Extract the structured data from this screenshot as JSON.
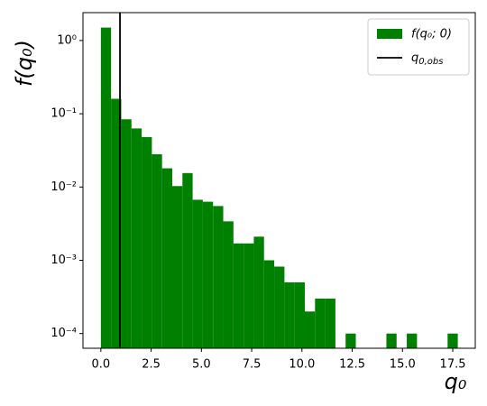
{
  "chart_data": {
    "type": "histogram",
    "bins": [
      0,
      0.507,
      1.014,
      1.521,
      2.029,
      2.536,
      3.043,
      3.55,
      4.057,
      4.564,
      5.071,
      5.579,
      6.086,
      6.593,
      7.1,
      7.607,
      8.114,
      8.621,
      9.129,
      9.636,
      10.143,
      10.65,
      11.157,
      11.664,
      12.171,
      12.679,
      13.186,
      13.693,
      14.2,
      14.707,
      15.214,
      15.721,
      16.229,
      16.736,
      17.243,
      17.75
    ],
    "series": [
      {
        "name": "f(q₀; 0)",
        "color": "#008000",
        "values": [
          1.5,
          0.16,
          0.084,
          0.063,
          0.048,
          0.028,
          0.018,
          0.0103,
          0.0155,
          0.0067,
          0.0063,
          0.0055,
          0.0034,
          0.0017,
          0.0017,
          0.0021,
          0.001,
          0.00082,
          0.0005,
          0.0005,
          0.0002,
          0.0003,
          0.0003,
          0,
          0.0001,
          0,
          0,
          0,
          0.0001,
          0,
          0.0001,
          0,
          0,
          0,
          0.0001
        ]
      }
    ],
    "observed": {
      "label_main": "q",
      "label_sub": "0,obs",
      "value": 0.95,
      "color": "#000000"
    },
    "x_label": "q₀",
    "y_label": "f(q₀)",
    "xlim": [
      -0.89,
      18.62
    ],
    "ylim": [
      6.3e-05,
      2.4
    ],
    "log_y": true,
    "xticks": [
      {
        "value": 0,
        "label": "0.0"
      },
      2.5,
      {
        "value": 5,
        "label": "5.0"
      },
      7.5,
      {
        "value": 10,
        "label": "10.0"
      },
      12.5,
      {
        "value": 15,
        "label": "15.0"
      },
      17.5
    ],
    "yticks": [
      {
        "value": 0.0001,
        "label": "10⁻⁴"
      },
      {
        "value": 0.001,
        "label": "10⁻³"
      },
      {
        "value": 0.01,
        "label": "10⁻²"
      },
      {
        "value": 0.1,
        "label": "10⁻¹"
      },
      {
        "value": 1,
        "label": "10⁰"
      }
    ],
    "legend": "upper right"
  }
}
